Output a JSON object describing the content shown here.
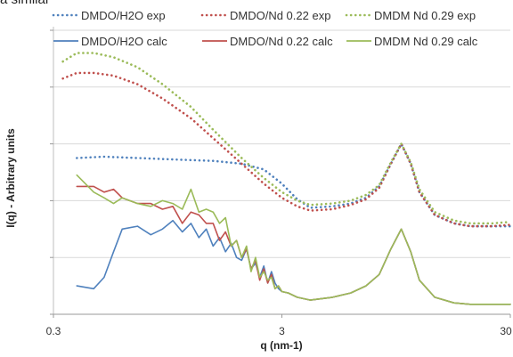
{
  "top_text": "a similar",
  "chart_data": {
    "type": "line",
    "title": "",
    "xlabel": "q (nm-1)",
    "ylabel": "I(q) - Arbitrary units",
    "xscale": "log",
    "xlim": [
      0.3,
      30
    ],
    "ylim": [
      0,
      10
    ],
    "x_ticks": [
      "0.3",
      "3",
      "30"
    ],
    "y_gridlines": [
      2,
      4,
      6,
      8,
      10
    ],
    "grid": true,
    "legend_position": "top",
    "series": [
      {
        "name": "DMDO/H2O exp",
        "style": "dotted",
        "color": "#4f81bd",
        "x": [
          0.38,
          0.5,
          0.7,
          1.0,
          1.5,
          2.0,
          2.5,
          3.0,
          3.5,
          4.0,
          5.0,
          6.0,
          7.0,
          8.0,
          9.0,
          10.0,
          11.0,
          12.0,
          14.0,
          17.0,
          20.0,
          25.0,
          30.0
        ],
        "y": [
          5.5,
          5.55,
          5.5,
          5.45,
          5.4,
          5.3,
          5.1,
          4.6,
          4.05,
          3.75,
          3.8,
          3.9,
          4.1,
          4.5,
          5.3,
          6.0,
          5.3,
          4.3,
          3.5,
          3.2,
          3.1,
          3.1,
          3.1
        ]
      },
      {
        "name": "DMDO/Nd 0.22 exp",
        "style": "dotted",
        "color": "#c0504d",
        "x": [
          0.33,
          0.38,
          0.45,
          0.55,
          0.7,
          0.9,
          1.2,
          1.5,
          2.0,
          2.5,
          3.0,
          3.5,
          4.0,
          5.0,
          6.0,
          7.0,
          8.0,
          9.0,
          10.0,
          11.0,
          12.0,
          14.0,
          17.0,
          20.0,
          25.0,
          30.0
        ],
        "y": [
          8.3,
          8.5,
          8.5,
          8.4,
          8.1,
          7.6,
          6.9,
          6.2,
          5.3,
          4.6,
          4.1,
          3.8,
          3.65,
          3.7,
          3.85,
          4.05,
          4.45,
          5.3,
          6.0,
          5.3,
          4.3,
          3.5,
          3.2,
          3.1,
          3.1,
          3.15
        ]
      },
      {
        "name": "DMDM Nd 0.29 exp",
        "style": "dotted",
        "color": "#9bbb59",
        "x": [
          0.33,
          0.38,
          0.45,
          0.55,
          0.7,
          0.9,
          1.2,
          1.5,
          2.0,
          2.5,
          3.0,
          3.5,
          4.0,
          5.0,
          6.0,
          7.0,
          8.0,
          9.0,
          10.0,
          11.0,
          12.0,
          14.0,
          17.0,
          20.0,
          25.0,
          30.0
        ],
        "y": [
          8.9,
          9.2,
          9.2,
          9.05,
          8.7,
          8.1,
          7.3,
          6.5,
          5.5,
          4.8,
          4.3,
          4.0,
          3.85,
          3.9,
          4.0,
          4.2,
          4.55,
          5.35,
          6.0,
          5.35,
          4.4,
          3.6,
          3.3,
          3.2,
          3.2,
          3.25
        ]
      },
      {
        "name": "DMDO/H2O calc",
        "style": "solid",
        "color": "#4f81bd",
        "x": [
          0.38,
          0.45,
          0.5,
          0.55,
          0.6,
          0.7,
          0.8,
          0.9,
          1.0,
          1.1,
          1.2,
          1.3,
          1.4,
          1.5,
          1.6,
          1.7,
          1.8,
          1.9,
          2.0,
          2.1,
          2.2,
          2.3,
          2.4,
          2.5,
          2.6,
          2.7,
          2.8,
          2.9,
          3.0,
          3.2,
          3.5,
          4.0,
          5.0,
          6.0,
          7.0,
          8.0,
          9.0,
          10.0,
          11.0,
          12.0,
          14.0,
          17.0,
          20.0,
          25.0,
          30.0
        ],
        "y": [
          1.0,
          0.9,
          1.3,
          2.2,
          3.0,
          3.1,
          2.8,
          3.0,
          3.3,
          2.9,
          3.2,
          2.7,
          3.0,
          2.4,
          2.7,
          2.2,
          2.5,
          2.0,
          1.9,
          2.3,
          1.6,
          1.8,
          1.3,
          1.7,
          1.1,
          1.5,
          1.1,
          0.9,
          0.8,
          0.75,
          0.6,
          0.5,
          0.6,
          0.75,
          1.0,
          1.4,
          2.3,
          3.0,
          2.2,
          1.2,
          0.6,
          0.4,
          0.35,
          0.35,
          0.35
        ]
      },
      {
        "name": "DMDO/Nd 0.22 calc",
        "style": "solid",
        "color": "#c0504d",
        "x": [
          0.38,
          0.45,
          0.5,
          0.55,
          0.6,
          0.7,
          0.8,
          0.9,
          1.0,
          1.1,
          1.2,
          1.3,
          1.4,
          1.5,
          1.6,
          1.7,
          1.8,
          1.9,
          2.0,
          2.1,
          2.2,
          2.3,
          2.4,
          2.5,
          2.6,
          2.7,
          2.8,
          2.9,
          3.0,
          3.2,
          3.5,
          4.0,
          5.0,
          6.0,
          7.0,
          8.0,
          9.0,
          10.0,
          11.0,
          12.0,
          14.0,
          17.0,
          20.0,
          25.0,
          30.0
        ],
        "y": [
          4.5,
          4.5,
          4.3,
          4.4,
          4.1,
          3.9,
          3.9,
          3.7,
          3.8,
          3.2,
          3.6,
          3.5,
          3.2,
          3.2,
          2.6,
          2.9,
          2.4,
          2.6,
          2.0,
          2.3,
          1.6,
          1.9,
          1.2,
          1.6,
          1.1,
          1.4,
          0.9,
          1.0,
          0.8,
          0.75,
          0.6,
          0.5,
          0.6,
          0.75,
          1.0,
          1.4,
          2.3,
          3.0,
          2.2,
          1.2,
          0.6,
          0.4,
          0.35,
          0.35,
          0.35
        ]
      },
      {
        "name": "DMDM Nd 0.29 calc",
        "style": "solid",
        "color": "#9bbb59",
        "x": [
          0.38,
          0.45,
          0.5,
          0.55,
          0.6,
          0.7,
          0.8,
          0.9,
          1.0,
          1.1,
          1.2,
          1.3,
          1.4,
          1.5,
          1.6,
          1.7,
          1.8,
          1.9,
          2.0,
          2.1,
          2.2,
          2.3,
          2.4,
          2.5,
          2.6,
          2.7,
          2.8,
          2.9,
          3.0,
          3.2,
          3.5,
          4.0,
          5.0,
          6.0,
          7.0,
          8.0,
          9.0,
          10.0,
          11.0,
          12.0,
          14.0,
          17.0,
          20.0,
          25.0,
          30.0
        ],
        "y": [
          4.9,
          4.3,
          4.1,
          3.9,
          4.1,
          3.9,
          3.8,
          4.0,
          3.9,
          3.7,
          4.4,
          3.6,
          3.7,
          3.6,
          3.2,
          3.4,
          2.4,
          2.6,
          2.0,
          2.4,
          1.5,
          2.0,
          1.3,
          1.5,
          1.2,
          1.3,
          0.9,
          1.0,
          0.8,
          0.75,
          0.6,
          0.5,
          0.6,
          0.75,
          1.0,
          1.4,
          2.3,
          3.0,
          2.2,
          1.2,
          0.6,
          0.4,
          0.35,
          0.35,
          0.35
        ]
      }
    ]
  }
}
